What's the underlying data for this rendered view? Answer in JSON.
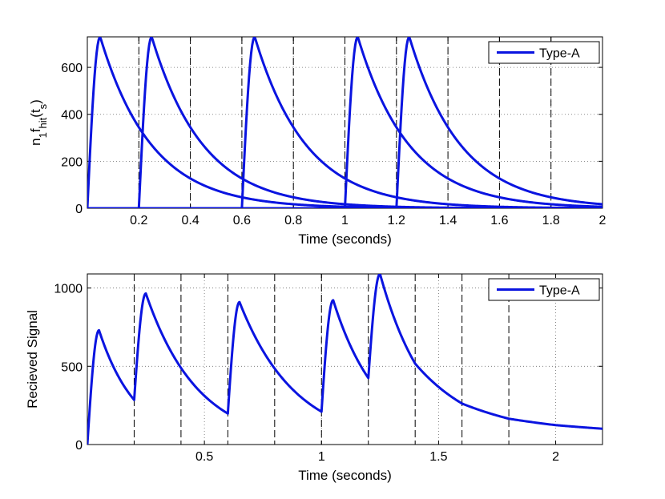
{
  "chart_data": [
    {
      "type": "line",
      "title": "",
      "xlabel": "Time (seconds)",
      "ylabel_parts": {
        "n": "n",
        "n_sub": "1",
        "f": "f",
        "f_sub": "hit",
        "open": "(t",
        "t_sub": "s",
        "close": ")"
      },
      "xlim": [
        0,
        2
      ],
      "ylim": [
        0,
        730
      ],
      "xticks": [
        0.2,
        0.4,
        0.6,
        0.8,
        1,
        1.2,
        1.4,
        1.6,
        1.8,
        2
      ],
      "xtick_labels": [
        "0.2",
        "0.4",
        "0.6",
        "0.8",
        "1",
        "1.2",
        "1.4",
        "1.6",
        "1.8",
        "2"
      ],
      "yticks": [
        0,
        200,
        400,
        600
      ],
      "ytick_labels": [
        "0",
        "200",
        "400",
        "600"
      ],
      "grid": "dotted",
      "dashed_vlines": [
        0.2,
        0.4,
        0.6,
        0.8,
        1.0,
        1.2,
        1.4,
        1.6,
        1.8
      ],
      "legend": {
        "position": "top-right",
        "entries": [
          "Type-A"
        ]
      },
      "series_color": "#0a14e0",
      "pulse": {
        "peak": 730,
        "peak_delay": 0.05,
        "decay_rate": 5
      },
      "series": [
        {
          "onset": 0.0
        },
        {
          "onset": 0.2
        },
        {
          "onset": 0.6
        },
        {
          "onset": 1.0
        },
        {
          "onset": 1.2
        }
      ]
    },
    {
      "type": "line",
      "title": "",
      "xlabel": "Time (seconds)",
      "ylabel": "Recieved Signal",
      "xlim": [
        0,
        2.2
      ],
      "ylim": [
        0,
        1090
      ],
      "xticks": [
        0.5,
        1,
        1.5,
        2
      ],
      "xtick_labels": [
        "0.5",
        "1",
        "1.5",
        "2"
      ],
      "yticks": [
        0,
        500,
        1000
      ],
      "ytick_labels": [
        "0",
        "500",
        "1000"
      ],
      "grid": "dotted",
      "dashed_vlines": [
        0.2,
        0.4,
        0.6,
        0.8,
        1.0,
        1.2,
        1.4,
        1.6,
        1.8
      ],
      "legend": {
        "position": "top-right",
        "entries": [
          "Type-A"
        ]
      },
      "series_color": "#0a14e0",
      "series": [
        {
          "name": "Type-A",
          "x": [
            0,
            0.05,
            0.2,
            0.25,
            0.6,
            0.65,
            1.0,
            1.05,
            1.2,
            1.25,
            1.4,
            1.6,
            1.8,
            2.0,
            2.2
          ],
          "y": [
            0,
            730,
            285,
            965,
            198,
            910,
            210,
            922,
            425,
            1090,
            517,
            262,
            165,
            124,
            101
          ]
        }
      ]
    }
  ]
}
